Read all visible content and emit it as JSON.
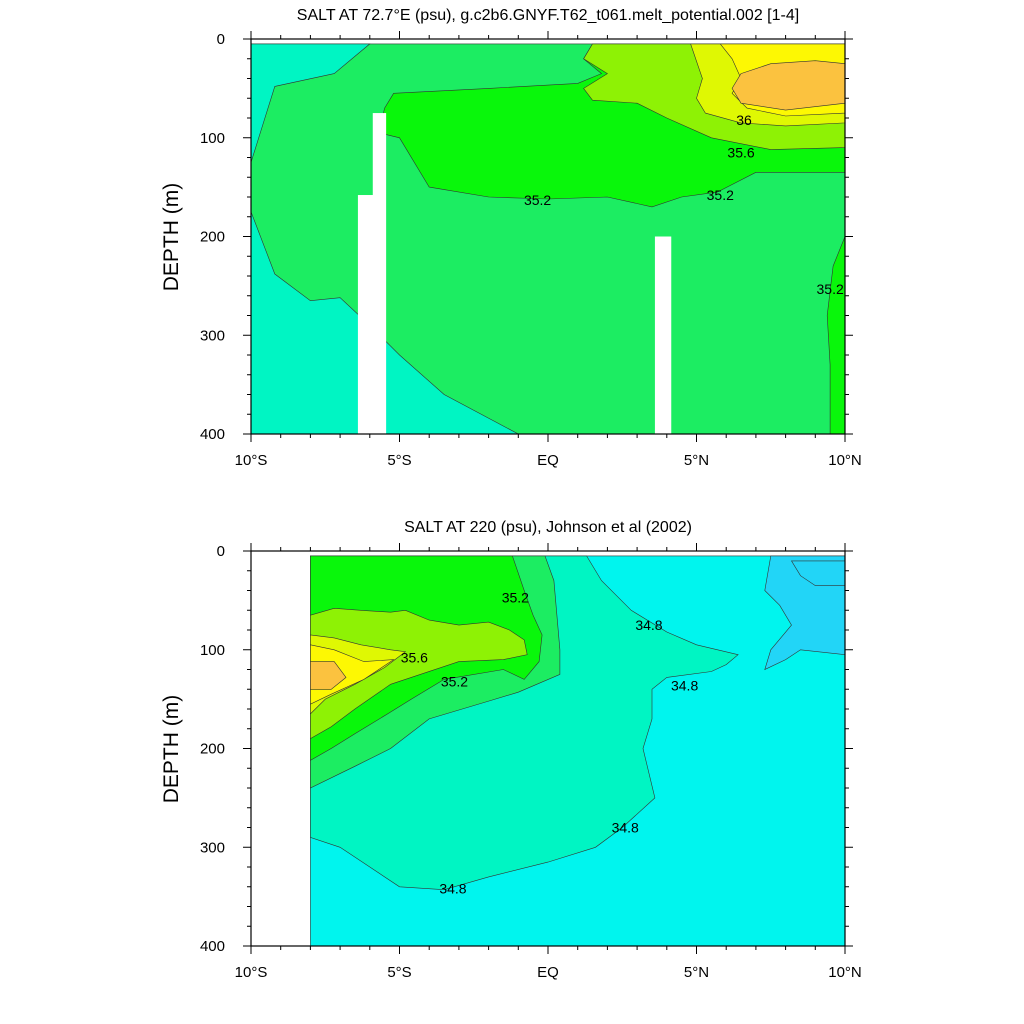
{
  "chart_data": [
    {
      "type": "contour",
      "title": "SALT AT  72.7°E (psu), g.c2b6.GNYF.T62_t061.melt_potential.002 [1-4]",
      "ylabel": "DEPTH (m)",
      "xlabel": "",
      "xlim": [
        -10,
        10
      ],
      "ylim": [
        400,
        0
      ],
      "x_ticks": [
        {
          "value": -10,
          "label": "10°S"
        },
        {
          "value": -5,
          "label": "5°S"
        },
        {
          "value": 0,
          "label": "EQ"
        },
        {
          "value": 5,
          "label": "5°N"
        },
        {
          "value": 10,
          "label": "10°N"
        }
      ],
      "y_ticks": [
        {
          "value": 0,
          "label": "0"
        },
        {
          "value": 100,
          "label": "100"
        },
        {
          "value": 200,
          "label": "200"
        },
        {
          "value": 300,
          "label": "300"
        },
        {
          "value": 400,
          "label": "400"
        }
      ],
      "fill_colors": {
        "34.8-35.0": "#00f5c3",
        "35.0-35.2": "#1ced62",
        "35.2-35.4": "#09f70b",
        "35.4-35.6": "#8ef205",
        "35.6-35.8": "#dff803",
        "35.8-36.0": "#fdf803",
        "36.0-36.2": "#fbc23f"
      },
      "regions": [
        {
          "level": "35.0-35.2",
          "points": [
            [
              -10,
              5
            ],
            [
              10,
              5
            ],
            [
              10,
              400
            ],
            [
              -10,
              400
            ]
          ]
        },
        {
          "level": "34.8-35.0",
          "points": [
            [
              -10,
              5
            ],
            [
              -6,
              5
            ],
            [
              -7.2,
              35
            ],
            [
              -9.2,
              48
            ],
            [
              -10,
              125
            ]
          ]
        },
        {
          "level": "34.8-35.0",
          "points": [
            [
              -10,
              175
            ],
            [
              -9.2,
              238
            ],
            [
              -8,
              265
            ],
            [
              -7,
              262
            ],
            [
              -6,
              290
            ],
            [
              -5,
              320
            ],
            [
              -3.5,
              360
            ],
            [
              -1,
              400
            ],
            [
              -10,
              400
            ]
          ]
        },
        {
          "level": "35.2-35.4",
          "points": [
            [
              -5.7,
              95
            ],
            [
              -5.5,
              70
            ],
            [
              -5.2,
              55
            ],
            [
              -2,
              50
            ],
            [
              1,
              45
            ],
            [
              1.8,
              35
            ],
            [
              1.2,
              20
            ],
            [
              1.5,
              5
            ],
            [
              10,
              5
            ],
            [
              10,
              135
            ],
            [
              7,
              135
            ],
            [
              5.7,
              155
            ],
            [
              4.5,
              160
            ],
            [
              3.5,
              170
            ],
            [
              2,
              160
            ],
            [
              0,
              162
            ],
            [
              -2,
              160
            ],
            [
              -4,
              150
            ],
            [
              -5,
              100
            ]
          ]
        },
        {
          "level": "35.2-35.4",
          "points": [
            [
              10,
              200
            ],
            [
              9.6,
              230
            ],
            [
              9.4,
              280
            ],
            [
              9.5,
              330
            ],
            [
              9.5,
              400
            ],
            [
              10,
              400
            ]
          ]
        },
        {
          "level": "35.4-35.6",
          "points": [
            [
              1.5,
              5
            ],
            [
              10,
              5
            ],
            [
              10,
              110
            ],
            [
              7.5,
              112
            ],
            [
              5.5,
              100
            ],
            [
              4,
              80
            ],
            [
              3,
              65
            ],
            [
              1.5,
              62
            ],
            [
              1.2,
              50
            ],
            [
              2,
              35
            ],
            [
              1.2,
              20
            ]
          ]
        },
        {
          "level": "35.6-35.8",
          "points": [
            [
              4.8,
              5
            ],
            [
              10,
              5
            ],
            [
              10,
              85
            ],
            [
              8,
              88
            ],
            [
              6.5,
              85
            ],
            [
              5.3,
              75
            ],
            [
              5,
              60
            ],
            [
              5.2,
              40
            ]
          ]
        },
        {
          "level": "35.8-36.0",
          "points": [
            [
              5.8,
              5
            ],
            [
              10,
              5
            ],
            [
              10,
              75
            ],
            [
              8,
              78
            ],
            [
              6.7,
              70
            ],
            [
              6.2,
              55
            ],
            [
              6.5,
              40
            ],
            [
              6.2,
              20
            ]
          ]
        },
        {
          "level": "36.0-36.2",
          "points": [
            [
              6.5,
              35
            ],
            [
              7.5,
              25
            ],
            [
              9,
              22
            ],
            [
              10,
              25
            ],
            [
              10,
              65
            ],
            [
              8,
              72
            ],
            [
              6.5,
              65
            ],
            [
              6.2,
              50
            ]
          ]
        }
      ],
      "blank_columns": [
        {
          "x": [
            -6.4,
            -5.6
          ],
          "y": [
            158,
            400
          ]
        },
        {
          "x": [
            -5.9,
            -5.45
          ],
          "y": [
            75,
            400
          ]
        },
        {
          "x": [
            3.6,
            4.15
          ],
          "y": [
            200,
            400
          ]
        }
      ],
      "contour_labels": [
        {
          "text": "36",
          "x": 6.6,
          "y": 82
        },
        {
          "text": "35.6",
          "x": 6.5,
          "y": 115
        },
        {
          "text": "35.2",
          "x": -0.35,
          "y": 163
        },
        {
          "text": "35.2",
          "x": 5.8,
          "y": 158
        },
        {
          "text": "35.2",
          "x": 9.5,
          "y": 253
        }
      ]
    },
    {
      "type": "contour",
      "title": "SALT AT 220 (psu), Johnson et al (2002)",
      "ylabel": "DEPTH (m)",
      "xlabel": "",
      "xlim": [
        -10,
        10
      ],
      "ylim": [
        400,
        0
      ],
      "x_ticks": [
        {
          "value": -10,
          "label": "10°S"
        },
        {
          "value": -5,
          "label": "5°S"
        },
        {
          "value": 0,
          "label": "EQ"
        },
        {
          "value": 5,
          "label": "5°N"
        },
        {
          "value": 10,
          "label": "10°N"
        }
      ],
      "y_ticks": [
        {
          "value": 0,
          "label": "0"
        },
        {
          "value": 100,
          "label": "100"
        },
        {
          "value": 200,
          "label": "200"
        },
        {
          "value": 300,
          "label": "300"
        },
        {
          "value": 400,
          "label": "400"
        }
      ],
      "data_x_range": [
        -8,
        10
      ],
      "fill_colors": {
        "34.4-34.6": "#22d5f7",
        "34.6-34.8": "#00f5ee",
        "34.8-35.0": "#00f5c3",
        "35.0-35.2": "#1ced62",
        "35.2-35.4": "#09f70b",
        "35.4-35.6": "#8ef205",
        "35.6-35.8": "#dff803",
        "35.8-36.0": "#fdf803",
        "36.0-36.2": "#fbc23f"
      },
      "regions": [
        {
          "level": "34.6-34.8",
          "points": [
            [
              -8,
              5
            ],
            [
              10,
              5
            ],
            [
              10,
              400
            ],
            [
              -8,
              400
            ]
          ]
        },
        {
          "level": "34.8-35.0",
          "points": [
            [
              -8,
              5
            ],
            [
              1.3,
              5
            ],
            [
              1.8,
              30
            ],
            [
              2.8,
              60
            ],
            [
              4,
              82
            ],
            [
              5,
              95
            ],
            [
              6.4,
              105
            ],
            [
              6,
              115
            ],
            [
              5.5,
              122
            ],
            [
              4,
              128
            ],
            [
              3.5,
              140
            ],
            [
              3.5,
              170
            ],
            [
              3.2,
              200
            ],
            [
              3.6,
              250
            ],
            [
              2.5,
              280
            ],
            [
              1.6,
              300
            ],
            [
              0,
              315
            ],
            [
              -2,
              330
            ],
            [
              -3.5,
              343
            ],
            [
              -5,
              340
            ],
            [
              -6,
              320
            ],
            [
              -7,
              300
            ],
            [
              -8,
              290
            ]
          ]
        },
        {
          "level": "35.0-35.2",
          "points": [
            [
              -8,
              5
            ],
            [
              -0.1,
              5
            ],
            [
              0.2,
              30
            ],
            [
              0.4,
              100
            ],
            [
              0.4,
              125
            ],
            [
              -1,
              143
            ],
            [
              -2,
              152
            ],
            [
              -4,
              170
            ],
            [
              -5.3,
              200
            ],
            [
              -6.5,
              218
            ],
            [
              -8,
              240
            ]
          ]
        },
        {
          "level": "35.2-35.4",
          "points": [
            [
              -8,
              5
            ],
            [
              -1.2,
              5
            ],
            [
              -0.8,
              40
            ],
            [
              -0.5,
              65
            ],
            [
              -0.2,
              85
            ],
            [
              -0.3,
              112
            ],
            [
              -0.8,
              130
            ],
            [
              -1.5,
              120
            ],
            [
              -3.5,
              130
            ],
            [
              -4.6,
              150
            ],
            [
              -5.4,
              165
            ],
            [
              -6.5,
              185
            ],
            [
              -7.3,
              200
            ],
            [
              -8,
              212
            ]
          ]
        },
        {
          "level": "35.4-35.6",
          "points": [
            [
              -8,
              65
            ],
            [
              -7.2,
              58
            ],
            [
              -6.3,
              60
            ],
            [
              -5.3,
              62
            ],
            [
              -4.8,
              60
            ],
            [
              -4,
              70
            ],
            [
              -3,
              75
            ],
            [
              -2,
              72
            ],
            [
              -1.3,
              80
            ],
            [
              -0.8,
              90
            ],
            [
              -0.7,
              105
            ],
            [
              -1.5,
              110
            ],
            [
              -3,
              112
            ],
            [
              -5.3,
              135
            ],
            [
              -6.5,
              160
            ],
            [
              -7.3,
              178
            ],
            [
              -8,
              190
            ]
          ]
        },
        {
          "level": "35.6-35.8",
          "points": [
            [
              -8,
              85
            ],
            [
              -7.2,
              88
            ],
            [
              -6.3,
              95
            ],
            [
              -5.3,
              100
            ],
            [
              -4.8,
              102
            ],
            [
              -5.5,
              118
            ],
            [
              -6.5,
              135
            ],
            [
              -7.5,
              150
            ],
            [
              -8,
              165
            ]
          ]
        },
        {
          "level": "35.8-36.0",
          "points": [
            [
              -8,
              95
            ],
            [
              -7.2,
              100
            ],
            [
              -6.2,
              112
            ],
            [
              -5.2,
              110
            ],
            [
              -6.2,
              130
            ],
            [
              -7.3,
              145
            ],
            [
              -8,
              155
            ]
          ]
        },
        {
          "level": "36.0-36.2",
          "points": [
            [
              -8,
              112
            ],
            [
              -7.2,
              112
            ],
            [
              -6.8,
              128
            ],
            [
              -7.3,
              140
            ],
            [
              -8,
              140
            ]
          ]
        },
        {
          "level": "34.4-34.6",
          "points": [
            [
              7.5,
              5
            ],
            [
              10,
              5
            ],
            [
              10,
              105
            ],
            [
              8.5,
              100
            ],
            [
              8,
              110
            ],
            [
              7.3,
              120
            ],
            [
              7.5,
              100
            ],
            [
              8.2,
              75
            ],
            [
              7.8,
              55
            ],
            [
              7.3,
              40
            ]
          ]
        },
        {
          "level": "34.4-34.6",
          "points": [
            [
              8.2,
              10
            ],
            [
              10,
              10
            ],
            [
              10,
              35
            ],
            [
              9,
              35
            ],
            [
              8.5,
              25
            ]
          ]
        }
      ],
      "contour_labels": [
        {
          "text": "35.2",
          "x": -1.1,
          "y": 47
        },
        {
          "text": "34.8",
          "x": 3.4,
          "y": 75
        },
        {
          "text": "35.6",
          "x": -4.5,
          "y": 108
        },
        {
          "text": "35.2",
          "x": -3.15,
          "y": 132
        },
        {
          "text": "34.8",
          "x": 4.6,
          "y": 136
        },
        {
          "text": "34.8",
          "x": 2.6,
          "y": 280
        },
        {
          "text": "34.8",
          "x": -3.2,
          "y": 342
        }
      ]
    }
  ]
}
